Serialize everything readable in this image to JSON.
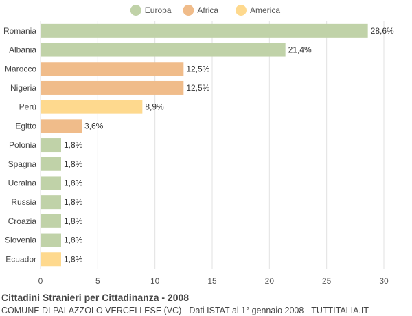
{
  "chart_data": {
    "type": "bar",
    "orientation": "horizontal",
    "title": "Cittadini Stranieri per Cittadinanza - 2008",
    "subtitle": "COMUNE DI PALAZZOLO VERCELLESE (VC) - Dati ISTAT al 1° gennaio 2008 - TUTTITALIA.IT",
    "xlim": [
      0,
      30
    ],
    "xticks": [
      0,
      5,
      10,
      15,
      20,
      25,
      30
    ],
    "grid": true,
    "legend_position": "top-center",
    "legend": [
      {
        "name": "Europa",
        "color": "#c0d2a8"
      },
      {
        "name": "Africa",
        "color": "#f0bc8a"
      },
      {
        "name": "America",
        "color": "#fed98e"
      }
    ],
    "bars": [
      {
        "category": "Romania",
        "value": 28.6,
        "label": "28,6%",
        "group": "Europa"
      },
      {
        "category": "Albania",
        "value": 21.4,
        "label": "21,4%",
        "group": "Europa"
      },
      {
        "category": "Marocco",
        "value": 12.5,
        "label": "12,5%",
        "group": "Africa"
      },
      {
        "category": "Nigeria",
        "value": 12.5,
        "label": "12,5%",
        "group": "Africa"
      },
      {
        "category": "Perù",
        "value": 8.9,
        "label": "8,9%",
        "group": "America"
      },
      {
        "category": "Egitto",
        "value": 3.6,
        "label": "3,6%",
        "group": "Africa"
      },
      {
        "category": "Polonia",
        "value": 1.8,
        "label": "1,8%",
        "group": "Europa"
      },
      {
        "category": "Spagna",
        "value": 1.8,
        "label": "1,8%",
        "group": "Europa"
      },
      {
        "category": "Ucraina",
        "value": 1.8,
        "label": "1,8%",
        "group": "Europa"
      },
      {
        "category": "Russia",
        "value": 1.8,
        "label": "1,8%",
        "group": "Europa"
      },
      {
        "category": "Croazia",
        "value": 1.8,
        "label": "1,8%",
        "group": "Europa"
      },
      {
        "category": "Slovenia",
        "value": 1.8,
        "label": "1,8%",
        "group": "Europa"
      },
      {
        "category": "Ecuador",
        "value": 1.8,
        "label": "1,8%",
        "group": "America"
      }
    ]
  }
}
